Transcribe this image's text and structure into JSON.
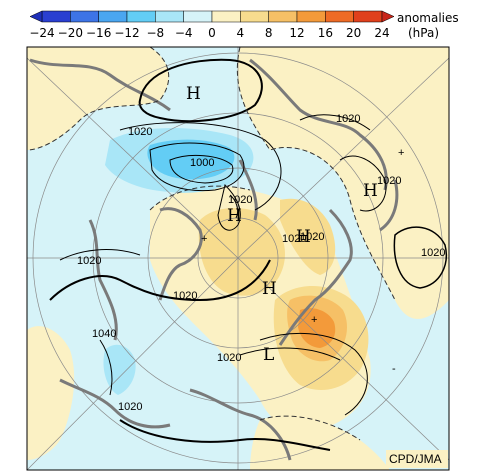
{
  "colorbar": {
    "title_line1": "anomalies",
    "title_line2": "(hPa)",
    "ticks": [
      "−24",
      "−20",
      "−16",
      "−12",
      "−8",
      "−4",
      "0",
      "4",
      "8",
      "12",
      "16",
      "20",
      "24"
    ],
    "colors": [
      "#2a3fd1",
      "#3d74e6",
      "#4aa6f0",
      "#63cdf5",
      "#a9e6f7",
      "#d6f3f8",
      "#fbf1c4",
      "#f7dc8e",
      "#f6c066",
      "#f39a3a",
      "#ee6b25",
      "#e0401c"
    ]
  },
  "map": {
    "contour_labels": [
      "1020",
      "1000",
      "1020",
      "1020",
      "1020",
      "1020",
      "1020",
      "1020",
      "1040",
      "1020",
      "1020",
      "1020",
      "1020"
    ],
    "centers": [
      "H",
      "H",
      "H",
      "H",
      "H",
      "L"
    ],
    "plus_marks": [
      "+",
      "+",
      "+"
    ],
    "minus_mark": "-",
    "credit": "CPD/JMA"
  }
}
